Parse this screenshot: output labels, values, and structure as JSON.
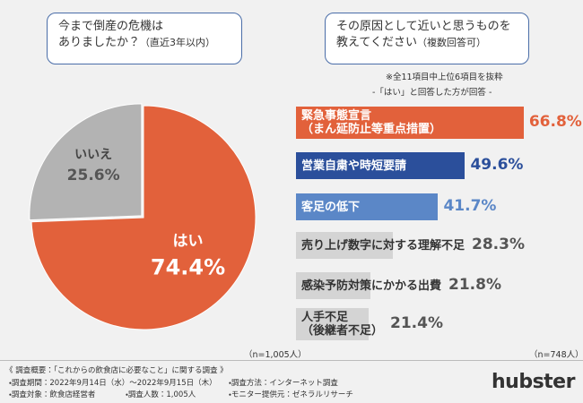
{
  "chart_data": [
    {
      "type": "pie",
      "title": "今まで倒産の危機は\nありましたか？",
      "title_note": "（直近3年以内）",
      "categories": [
        "はい",
        "いいえ"
      ],
      "values": [
        74.4,
        25.6
      ],
      "value_labels": [
        "74.4%",
        "25.6%"
      ],
      "colors": [
        "#e2613b",
        "#b3b3b3"
      ],
      "note": "（n=1,005人）"
    },
    {
      "type": "bar",
      "title": "その原因として近いと思うものを\n教えてください",
      "title_note": "（複数回答可）",
      "subtitle": "※全11項目中上位6項目を抜粋",
      "subtitle2": "-「はい」と回答した方が回答 -",
      "categories": [
        "緊急事態宣言\n（まん延防止等重点措置）",
        "営業自粛や時短要請",
        "客足の低下",
        "売り上げ数字に対する理解不足",
        "感染予防対策にかかる出費",
        "人手不足\n（後継者不足）"
      ],
      "values": [
        66.8,
        49.6,
        41.7,
        28.3,
        21.8,
        21.4
      ],
      "value_labels": [
        "66.8%",
        "49.6%",
        "41.7%",
        "28.3%",
        "21.8%",
        "21.4%"
      ],
      "colors": [
        "#e2613b",
        "#2b4f9b",
        "#5b87c7",
        "#d4d4d4",
        "#d4d4d4",
        "#d4d4d4"
      ],
      "category_text_colors": [
        "#ffffff",
        "#ffffff",
        "#ffffff",
        "#333333",
        "#333333",
        "#333333"
      ],
      "label_colors": [
        "#e2613b",
        "#2b4f9b",
        "#5b87c7",
        "#555555",
        "#555555",
        "#555555"
      ],
      "note": "（n=748人）"
    }
  ],
  "footer": {
    "heading": "《 調査概要：「これからの飲食店に必要なこと」に関する調査 》",
    "items": [
      "・調査期間：2022年9月14日（水）～2022年9月15日（木）",
      "・調査方法：インターネット調査",
      "・調査対象：飲食店経営者",
      "・調査人数：1,005人",
      "・モニター提供元：ゼネラルリサーチ"
    ]
  },
  "logo": "hubster"
}
